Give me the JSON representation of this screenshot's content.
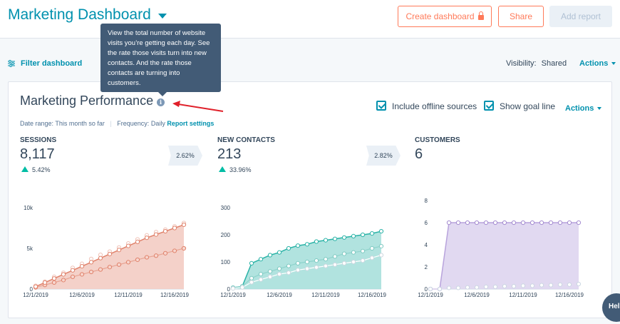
{
  "header": {
    "title": "Marketing Dashboard",
    "create_label": "Create dashboard",
    "share_label": "Share",
    "add_report_label": "Add report"
  },
  "toolbar": {
    "filter_label": "Filter dashboard",
    "visibility_label": "Visibility:",
    "visibility_value": "Shared",
    "actions_label": "Actions"
  },
  "tooltip": {
    "text": "View the total number of website visits you’re getting each day. See the rate those visits turn into new contacts. And the rate those contacts are turning into customers."
  },
  "report": {
    "title": "Marketing Performance",
    "date_range_label": "Date range:",
    "date_range_value": "This month so far",
    "frequency_label": "Frequency:",
    "frequency_value": "Daily",
    "settings_link": "Report settings",
    "include_offline_label": "Include offline sources",
    "include_offline_checked": true,
    "show_goal_label": "Show goal line",
    "show_goal_checked": true,
    "actions_label": "Actions"
  },
  "metrics": [
    {
      "label": "SESSIONS",
      "value": "8,117",
      "change": "5.42%"
    },
    {
      "label": "NEW CONTACTS",
      "value": "213",
      "change": "33.96%"
    },
    {
      "label": "CUSTOMERS",
      "value": "6"
    }
  ],
  "rates": [
    "2.62%",
    "2.82%"
  ],
  "help_label": "Help",
  "colors": {
    "accent": "#0091ae",
    "orange": "#ff7a59",
    "sessions_line": "#e0826b",
    "sessions_fill": "#f3ccc3",
    "contacts_line": "#2ab3a7",
    "contacts_fill": "#a8e0db",
    "customers_line": "#b8a3dc",
    "customers_fill": "#ded5f0"
  },
  "chart_data": [
    {
      "type": "area",
      "title": "SESSIONS",
      "x": [
        "12/1/2019",
        "12/2/2019",
        "12/3/2019",
        "12/4/2019",
        "12/5/2019",
        "12/6/2019",
        "12/7/2019",
        "12/8/2019",
        "12/9/2019",
        "12/10/2019",
        "12/11/2019",
        "12/12/2019",
        "12/13/2019",
        "12/14/2019",
        "12/15/2019",
        "12/16/2019",
        "12/17/2019"
      ],
      "x_ticks": [
        "12/1/2019",
        "12/6/2019",
        "12/11/2019",
        "12/16/2019"
      ],
      "y_ticks": [
        "0",
        "5k",
        "10k"
      ],
      "ylim": [
        0,
        10000
      ],
      "series": [
        {
          "values": [
            400,
            900,
            1500,
            2000,
            2600,
            3100,
            3700,
            4200,
            4600,
            5100,
            5600,
            6100,
            6600,
            7000,
            7300,
            7700,
            8117
          ]
        },
        {
          "values": [
            200,
            500,
            800,
            1100,
            1500,
            1800,
            2100,
            2400,
            2700,
            3000,
            3300,
            3600,
            3900,
            4100,
            4400,
            4700,
            5000
          ]
        },
        {
          "values": [
            300,
            800,
            1300,
            1800,
            2300,
            2800,
            3300,
            3800,
            4300,
            4800,
            5300,
            5800,
            6300,
            6700,
            7100,
            7500,
            7900
          ]
        }
      ]
    },
    {
      "type": "area",
      "title": "NEW CONTACTS",
      "x": [
        "12/1/2019",
        "12/2/2019",
        "12/3/2019",
        "12/4/2019",
        "12/5/2019",
        "12/6/2019",
        "12/7/2019",
        "12/8/2019",
        "12/9/2019",
        "12/10/2019",
        "12/11/2019",
        "12/12/2019",
        "12/13/2019",
        "12/14/2019",
        "12/15/2019",
        "12/16/2019",
        "12/17/2019"
      ],
      "x_ticks": [
        "12/1/2019",
        "12/6/2019",
        "12/11/2019",
        "12/16/2019"
      ],
      "y_ticks": [
        "0",
        "100",
        "200",
        "300"
      ],
      "ylim": [
        0,
        300
      ],
      "series": [
        {
          "values": [
            5,
            10,
            95,
            110,
            125,
            135,
            150,
            160,
            165,
            175,
            180,
            185,
            190,
            195,
            200,
            205,
            213
          ]
        },
        {
          "values": [
            5,
            10,
            40,
            55,
            65,
            75,
            85,
            95,
            100,
            105,
            110,
            120,
            130,
            135,
            140,
            150,
            158
          ]
        },
        {
          "values": [
            2,
            6,
            25,
            35,
            45,
            55,
            60,
            70,
            75,
            80,
            85,
            90,
            95,
            100,
            105,
            115,
            125
          ]
        }
      ]
    },
    {
      "type": "area",
      "title": "CUSTOMERS",
      "x": [
        "12/1/2019",
        "12/2/2019",
        "12/3/2019",
        "12/4/2019",
        "12/5/2019",
        "12/6/2019",
        "12/7/2019",
        "12/8/2019",
        "12/9/2019",
        "12/10/2019",
        "12/11/2019",
        "12/12/2019",
        "12/13/2019",
        "12/14/2019",
        "12/15/2019",
        "12/16/2019",
        "12/17/2019"
      ],
      "x_ticks": [
        "12/1/2019",
        "12/6/2019",
        "12/11/2019",
        "12/16/2019"
      ],
      "y_ticks": [
        "0",
        "2",
        "4",
        "6",
        "8"
      ],
      "ylim": [
        0,
        8
      ],
      "series": [
        {
          "values": [
            0,
            0,
            6,
            6,
            6,
            6,
            6,
            6,
            6,
            6,
            6,
            6,
            6,
            6,
            6,
            6,
            6
          ]
        },
        {
          "values": [
            0,
            0,
            0.1,
            0.1,
            0.15,
            0.15,
            0.2,
            0.2,
            0.25,
            0.25,
            0.3,
            0.3,
            0.35,
            0.35,
            0.4,
            0.4,
            0.45
          ]
        }
      ]
    }
  ]
}
